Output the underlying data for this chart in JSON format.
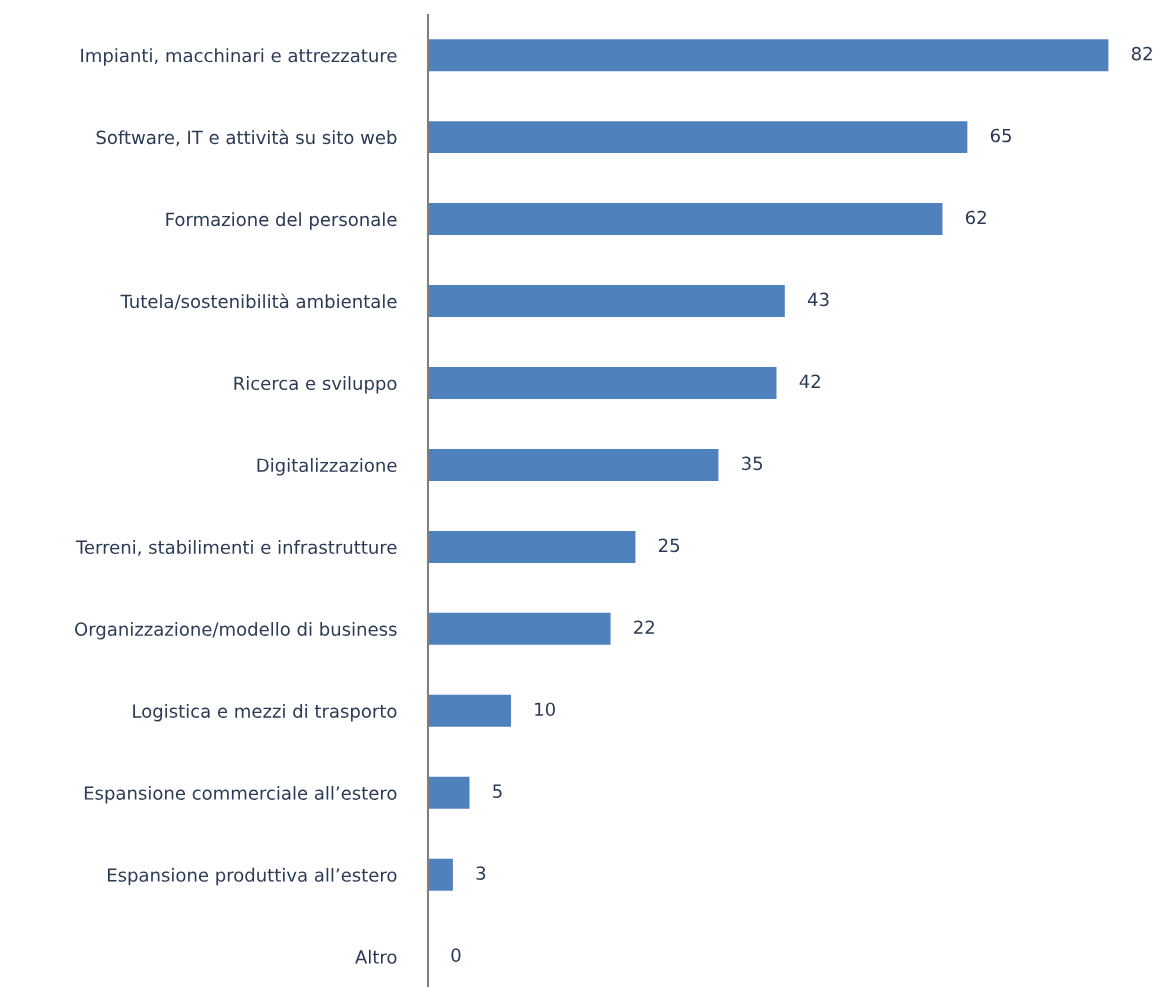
{
  "chart_data": {
    "type": "bar",
    "orientation": "horizontal",
    "categories": [
      "Impianti, macchinari e attrezzature",
      "Software, IT e attività su sito web",
      "Formazione del personale",
      "Tutela/sostenibilità ambientale",
      "Ricerca e sviluppo",
      "Digitalizzazione",
      "Terreni, stabilimenti e infrastrutture",
      "Organizzazione/modello di business",
      "Logistica e mezzi di trasporto",
      "Espansione commerciale all’estero",
      "Espansione produttiva all’estero",
      "Altro"
    ],
    "values": [
      82,
      65,
      62,
      43,
      42,
      35,
      25,
      22,
      10,
      5,
      3,
      0
    ],
    "color": "#4f81bd",
    "data_labels": true,
    "tick_labels": "y",
    "grid": false,
    "legend": false
  }
}
